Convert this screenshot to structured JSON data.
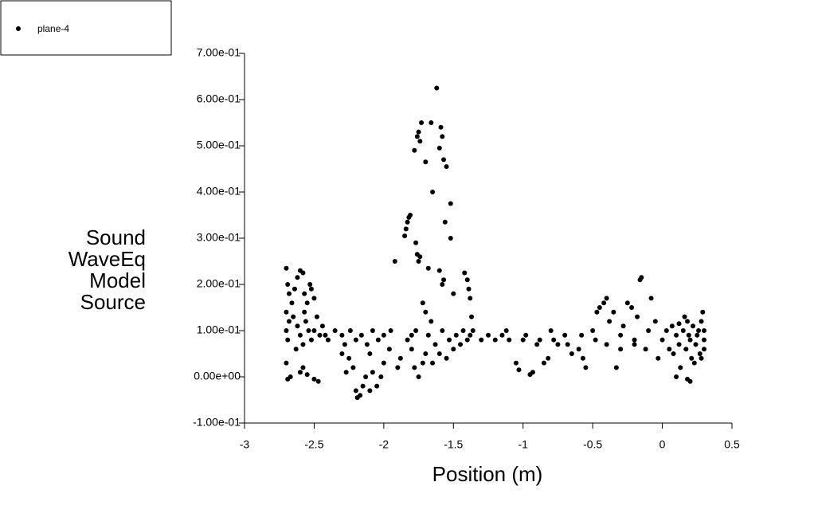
{
  "chart_data": {
    "type": "scatter",
    "xlabel": "Position (m)",
    "ylabel": [
      "Sound",
      "WaveEq",
      "Model",
      "Source"
    ],
    "xlim": [
      -3,
      0.5
    ],
    "ylim": [
      -0.1,
      0.7
    ],
    "xticks": [
      -3,
      -2.5,
      -2,
      -1.5,
      -1,
      -0.5,
      0,
      0.5
    ],
    "yticks": [
      {
        "value": -0.1,
        "label": "-1.00e-01"
      },
      {
        "value": 0,
        "label": "0.00e+00"
      },
      {
        "value": 0.1,
        "label": "1.00e-01"
      },
      {
        "value": 0.2,
        "label": "2.00e-01"
      },
      {
        "value": 0.3,
        "label": "3.00e-01"
      },
      {
        "value": 0.4,
        "label": "4.00e-01"
      },
      {
        "value": 0.5,
        "label": "5.00e-01"
      },
      {
        "value": 0.6,
        "label": "6.00e-01"
      },
      {
        "value": 0.7,
        "label": "7.00e-01"
      }
    ],
    "series": [
      {
        "name": "plane-4",
        "color": "#000000",
        "x": [
          -2.7,
          -2.69,
          -2.68,
          -2.7,
          -2.68,
          -2.7,
          -2.69,
          -2.7,
          -2.69,
          -2.67,
          -2.66,
          -2.64,
          -2.62,
          -2.6,
          -2.58,
          -2.57,
          -2.55,
          -2.53,
          -2.52,
          -2.5,
          -2.62,
          -2.6,
          -2.58,
          -2.56,
          -2.54,
          -2.52,
          -2.5,
          -2.48,
          -2.46,
          -2.6,
          -2.58,
          -2.55,
          -2.5,
          -2.47,
          -2.65,
          -2.63,
          -2.57,
          -2.44,
          -2.42,
          -2.4,
          -2.35,
          -2.3,
          -2.28,
          -2.25,
          -2.22,
          -2.2,
          -2.19,
          -2.17,
          -2.15,
          -2.13,
          -2.1,
          -2.08,
          -2.05,
          -2.02,
          -2.24,
          -2.2,
          -2.16,
          -2.12,
          -2.08,
          -2.04,
          -2.0,
          -2.3,
          -2.27,
          -2.1,
          -2.0,
          -1.96,
          -1.95,
          -1.92,
          -1.9,
          -1.88,
          -1.85,
          -1.84,
          -1.83,
          -1.82,
          -1.81,
          -1.8,
          -1.78,
          -1.76,
          -1.75,
          -1.74,
          -1.73,
          -1.7,
          -1.66,
          -1.65,
          -1.6,
          -1.59,
          -1.58,
          -1.57,
          -1.55,
          -1.56,
          -1.62,
          -1.58,
          -1.57,
          -1.6,
          -1.52,
          -1.52,
          -1.5,
          -1.42,
          -1.4,
          -1.39,
          -1.38,
          -1.37,
          -1.36,
          -1.75,
          -1.76,
          -1.77,
          -1.74,
          -1.72,
          -1.7,
          -1.68,
          -1.66,
          -1.8,
          -1.78,
          -1.75,
          -1.72,
          -1.7,
          -1.65,
          -1.6,
          -1.55,
          -1.5,
          -1.45,
          -1.4,
          -1.83,
          -1.77,
          -1.68,
          -1.63,
          -1.58,
          -1.53,
          -1.48,
          -1.43,
          -1.38,
          -1.3,
          -1.25,
          -1.2,
          -1.15,
          -1.1,
          -1.05,
          -1.03,
          -1.0,
          -0.95,
          -0.93,
          -0.9,
          -0.85,
          -0.82,
          -0.8,
          -0.75,
          -0.7,
          -0.65,
          -0.6,
          -0.57,
          -0.55,
          -0.5,
          -0.47,
          -0.45,
          -0.42,
          -0.4,
          -0.38,
          -0.35,
          -0.33,
          -0.3,
          -0.28,
          -0.25,
          -0.22,
          -0.2,
          -0.18,
          -0.16,
          -0.15,
          -0.12,
          -0.1,
          -0.08,
          -0.05,
          -0.03,
          0.0,
          -1.12,
          -0.98,
          -0.88,
          -0.78,
          -0.68,
          -0.58,
          -0.48,
          -0.4,
          -0.3,
          -0.2,
          0.03,
          0.05,
          0.07,
          0.08,
          0.1,
          0.12,
          0.13,
          0.15,
          0.17,
          0.18,
          0.2,
          0.21,
          0.22,
          0.24,
          0.25,
          0.27,
          0.28,
          0.3,
          0.3,
          0.3,
          0.29,
          0.28,
          0.2,
          0.18,
          0.1,
          0.16,
          0.12,
          0.26,
          0.23,
          0.19
        ],
        "values": [
          0.235,
          0.2,
          0.18,
          0.14,
          0.12,
          0.1,
          0.08,
          0.03,
          -0.005,
          0.0,
          0.16,
          0.19,
          0.215,
          0.23,
          0.225,
          0.18,
          0.16,
          0.2,
          0.19,
          0.17,
          0.11,
          0.09,
          0.07,
          0.12,
          0.1,
          0.08,
          0.1,
          0.13,
          0.09,
          0.01,
          0.02,
          0.005,
          -0.005,
          -0.01,
          0.13,
          0.06,
          0.14,
          0.11,
          0.09,
          0.08,
          0.1,
          0.09,
          0.07,
          0.04,
          0.02,
          -0.03,
          -0.045,
          -0.04,
          -0.02,
          0.0,
          -0.03,
          0.01,
          -0.02,
          0.0,
          0.1,
          0.08,
          0.09,
          0.07,
          0.1,
          0.08,
          0.09,
          0.05,
          0.01,
          0.05,
          0.03,
          0.06,
          0.1,
          0.25,
          0.02,
          0.04,
          0.305,
          0.32,
          0.335,
          0.345,
          0.35,
          0.09,
          0.49,
          0.52,
          0.53,
          0.51,
          0.55,
          0.465,
          0.55,
          0.4,
          0.495,
          0.54,
          0.52,
          0.47,
          0.455,
          0.335,
          0.625,
          0.2,
          0.21,
          0.23,
          0.375,
          0.3,
          0.18,
          0.225,
          0.21,
          0.19,
          0.17,
          0.13,
          0.1,
          0.25,
          0.265,
          0.29,
          0.26,
          0.16,
          0.14,
          0.235,
          0.12,
          0.06,
          0.02,
          0.0,
          0.03,
          0.05,
          0.03,
          0.05,
          0.04,
          0.06,
          0.07,
          0.08,
          0.08,
          0.1,
          0.09,
          0.07,
          0.1,
          0.08,
          0.09,
          0.1,
          0.09,
          0.08,
          0.09,
          0.08,
          0.09,
          0.08,
          0.03,
          0.015,
          0.08,
          0.005,
          0.01,
          0.07,
          0.03,
          0.04,
          0.1,
          0.07,
          0.09,
          0.05,
          0.06,
          0.04,
          0.02,
          0.1,
          0.14,
          0.15,
          0.16,
          0.17,
          0.12,
          0.14,
          0.02,
          0.06,
          0.11,
          0.16,
          0.15,
          0.08,
          0.13,
          0.21,
          0.215,
          0.06,
          0.1,
          0.17,
          0.12,
          0.04,
          0.08,
          0.1,
          0.09,
          0.08,
          0.08,
          0.07,
          0.09,
          0.08,
          0.07,
          0.09,
          0.07,
          0.1,
          0.06,
          0.11,
          0.05,
          0.09,
          0.07,
          0.02,
          0.1,
          0.06,
          0.12,
          0.08,
          0.04,
          0.11,
          0.07,
          0.09,
          0.05,
          0.12,
          0.08,
          0.1,
          0.06,
          0.14,
          0.04,
          -0.01,
          -0.005,
          0.0,
          0.13,
          0.115,
          0.1,
          0.03,
          0.09
        ]
      }
    ]
  }
}
